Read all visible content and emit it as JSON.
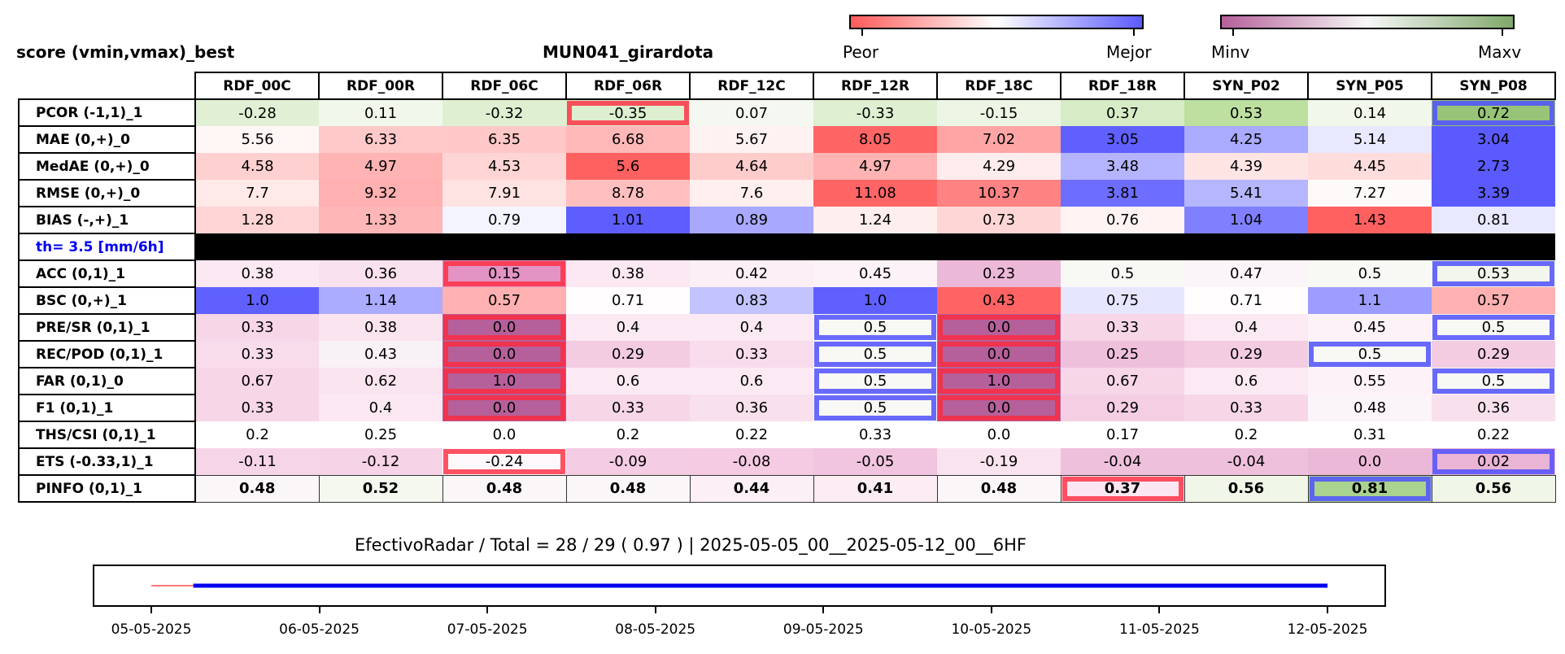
{
  "header": {
    "left_title": "score (vmin,vmax)_best",
    "center_title": "MUN041_girardota"
  },
  "colorbars": [
    {
      "left_label": "Peor",
      "right_label": "Mejor",
      "colors": [
        "#ff5a5a",
        "#ffffff",
        "#5a5aff"
      ]
    },
    {
      "left_label": "Minv",
      "right_label": "Maxv",
      "colors": [
        "#b5609a",
        "#f7f7f7",
        "#7fa86a"
      ]
    }
  ],
  "columns": [
    "RDF_00C",
    "RDF_00R",
    "RDF_06C",
    "RDF_06R",
    "RDF_12C",
    "RDF_12R",
    "RDF_18C",
    "RDF_18R",
    "SYN_P02",
    "SYN_P05",
    "SYN_P08"
  ],
  "threshold_label": "th= 3.5 [mm/6h]",
  "rows": [
    {
      "label": "PCOR (-1,1)_1",
      "values": [
        "-0.28",
        "0.11",
        "-0.32",
        "-0.35",
        "0.07",
        "-0.33",
        "-0.15",
        "0.37",
        "0.53",
        "0.14",
        "0.72"
      ],
      "colors": [
        "#e1f0d4",
        "#f2f7ec",
        "#dff0d2",
        "#ddefcf",
        "#f4f8f0",
        "#dfefd1",
        "#edf5e5",
        "#d6ecc6",
        "#bddf9f",
        "#f1f7eb",
        "#97c478"
      ],
      "worst": [
        3
      ],
      "best": [
        10
      ]
    },
    {
      "label": "MAE (0,+)_0",
      "values": [
        "5.56",
        "6.33",
        "6.35",
        "6.68",
        "5.67",
        "8.05",
        "7.02",
        "3.05",
        "4.25",
        "5.14",
        "3.04"
      ],
      "colors": [
        "#fff6f6",
        "#ffc9c9",
        "#ffc8c8",
        "#ffb8b8",
        "#fff2f2",
        "#ff6565",
        "#ffa5a5",
        "#6060ff",
        "#aaaaff",
        "#e8e8ff",
        "#5a5aff"
      ],
      "worst": [],
      "best": []
    },
    {
      "label": "MedAE (0,+)_0",
      "values": [
        "4.58",
        "4.97",
        "4.53",
        "5.6",
        "4.64",
        "4.97",
        "4.29",
        "3.48",
        "4.39",
        "4.45",
        "2.73"
      ],
      "colors": [
        "#ffd0d0",
        "#ffb3b3",
        "#ffd4d4",
        "#ff6060",
        "#ffcccc",
        "#ffb3b3",
        "#ffeded",
        "#b5b5ff",
        "#ffe4e4",
        "#ffdddd",
        "#5a5aff"
      ],
      "worst": [],
      "best": []
    },
    {
      "label": "RMSE (0,+)_0",
      "values": [
        "7.7",
        "9.32",
        "7.91",
        "8.78",
        "7.6",
        "11.08",
        "10.37",
        "3.81",
        "5.41",
        "7.27",
        "3.39"
      ],
      "colors": [
        "#ffe9e9",
        "#ffb0b0",
        "#ffe2e2",
        "#ffbfbf",
        "#ffefef",
        "#ff6565",
        "#ff8383",
        "#6d6dff",
        "#b6b6ff",
        "#fffafa",
        "#5a5aff"
      ],
      "worst": [],
      "best": []
    },
    {
      "label": "BIAS (-,+)_1",
      "values": [
        "1.28",
        "1.33",
        "0.79",
        "1.01",
        "0.89",
        "1.24",
        "0.73",
        "0.76",
        "1.04",
        "1.43",
        "0.81"
      ],
      "colors": [
        "#ffd4d4",
        "#ffb6b6",
        "#f4f4ff",
        "#5e5eff",
        "#a8a8ff",
        "#ffeeee",
        "#ffd6d6",
        "#fff3f3",
        "#8080ff",
        "#ff6060",
        "#e8e8ff"
      ],
      "worst": [],
      "best": []
    },
    {
      "label": "ACC (0,1)_1",
      "values": [
        "0.38",
        "0.36",
        "0.15",
        "0.38",
        "0.42",
        "0.45",
        "0.23",
        "0.5",
        "0.47",
        "0.5",
        "0.53"
      ],
      "colors": [
        "#fbe8f2",
        "#f9e2ee",
        "#e394c4",
        "#fbe8f2",
        "#fcf0f6",
        "#fcf2f7",
        "#ecb8d8",
        "#f8f9f4",
        "#fbf4f8",
        "#f8f9f4",
        "#f2f6ec"
      ],
      "worst": [
        2
      ],
      "best": [
        10
      ]
    },
    {
      "label": "BSC (0,+)_1",
      "values": [
        "1.0",
        "1.14",
        "0.57",
        "0.71",
        "0.83",
        "1.0",
        "0.43",
        "0.75",
        "0.71",
        "1.1",
        "0.57"
      ],
      "colors": [
        "#6060ff",
        "#ababff",
        "#ffb0b0",
        "#fffdfd",
        "#c3c3ff",
        "#6060ff",
        "#ff6363",
        "#e6e6ff",
        "#fffdfd",
        "#9d9dff",
        "#ffb0b0"
      ],
      "worst": [],
      "best": []
    },
    {
      "label": "PRE/SR (0,1)_1",
      "values": [
        "0.33",
        "0.38",
        "0.0",
        "0.4",
        "0.4",
        "0.5",
        "0.0",
        "0.33",
        "0.4",
        "0.45",
        "0.5"
      ],
      "colors": [
        "#f7d6e8",
        "#fae4ef",
        "#b5609a",
        "#fbeaf3",
        "#fbeaf3",
        "#f8f9f4",
        "#b5609a",
        "#f7d6e8",
        "#fbeaf3",
        "#fcf2f7",
        "#f8f9f4"
      ],
      "worst": [
        2,
        6
      ],
      "best": [
        5,
        10
      ]
    },
    {
      "label": "REC/POD (0,1)_1",
      "values": [
        "0.33",
        "0.43",
        "0.0",
        "0.29",
        "0.33",
        "0.5",
        "0.0",
        "0.25",
        "0.29",
        "0.5",
        "0.29"
      ],
      "colors": [
        "#f8dcec",
        "#f8f1f5",
        "#b5609a",
        "#f3cce2",
        "#f8dcec",
        "#f8f9f4",
        "#b5609a",
        "#efc0dc",
        "#f3cce2",
        "#f8f9f4",
        "#f3cce2"
      ],
      "worst": [
        2,
        6
      ],
      "best": [
        5,
        9
      ]
    },
    {
      "label": "FAR (0,1)_0",
      "values": [
        "0.67",
        "0.62",
        "1.0",
        "0.6",
        "0.6",
        "0.5",
        "1.0",
        "0.67",
        "0.6",
        "0.55",
        "0.5"
      ],
      "colors": [
        "#f7d6e8",
        "#fae4ef",
        "#b5609a",
        "#fbeaf3",
        "#fbeaf3",
        "#f8f9f4",
        "#b5609a",
        "#f7d6e8",
        "#fbeaf3",
        "#fcf2f7",
        "#f8f9f4"
      ],
      "worst": [
        2,
        6
      ],
      "best": [
        5,
        10
      ]
    },
    {
      "label": "F1 (0,1)_1",
      "values": [
        "0.33",
        "0.4",
        "0.0",
        "0.33",
        "0.36",
        "0.5",
        "0.0",
        "0.29",
        "0.33",
        "0.48",
        "0.36"
      ],
      "colors": [
        "#f7d6e8",
        "#fbe8f2",
        "#b5609a",
        "#f7d6e8",
        "#f9e0ed",
        "#f8f9f4",
        "#b5609a",
        "#f4cfe3",
        "#f7d6e8",
        "#fbf4f8",
        "#f9e0ed"
      ],
      "worst": [
        2,
        6
      ],
      "best": [
        5
      ]
    },
    {
      "label": "THS/CSI (0,1)_1",
      "values": [
        "0.2",
        "0.25",
        "0.0",
        "0.2",
        "0.22",
        "0.33",
        "0.0",
        "0.17",
        "0.2",
        "0.31",
        "0.22"
      ],
      "colors": [
        "#ffffff",
        "#ffffff",
        "#ffffff",
        "#ffffff",
        "#ffffff",
        "#ffffff",
        "#ffffff",
        "#ffffff",
        "#ffffff",
        "#ffffff",
        "#ffffff"
      ],
      "worst": [],
      "best": []
    },
    {
      "label": "ETS (-0.33,1)_1",
      "values": [
        "-0.11",
        "-0.12",
        "-0.24",
        "-0.09",
        "-0.08",
        "-0.05",
        "-0.19",
        "-0.04",
        "-0.04",
        "0.0",
        "0.02"
      ],
      "colors": [
        "#f6d5e8",
        "#f6d3e7",
        "#fdf8fb",
        "#f4cce3",
        "#f4cbe2",
        "#f1c5df",
        "#f9e3ef",
        "#efc0dc",
        "#efc0dc",
        "#ecb8d7",
        "#eab4d5"
      ],
      "worst": [
        2
      ],
      "best": [
        10
      ]
    },
    {
      "label": "PINFO (0,1)_1",
      "values": [
        "0.48",
        "0.52",
        "0.48",
        "0.48",
        "0.44",
        "0.41",
        "0.48",
        "0.37",
        "0.56",
        "0.81",
        "0.56"
      ],
      "colors": [
        "#fbf7f9",
        "#f4f8ef",
        "#fbf7f9",
        "#fbf7f9",
        "#fcf0f6",
        "#fcecf4",
        "#fbf7f9",
        "#fbe6f1",
        "#f1f7e8",
        "#a9d38e",
        "#f1f7e8"
      ],
      "worst": [
        7
      ],
      "best": [
        9
      ],
      "bold": true
    }
  ],
  "footer_text": "EfectivoRadar / Total  =  28 / 29 ( 0.97 ) | 2025-05-05_00__2025-05-12_00__6HF",
  "chart_data": {
    "type": "heatmap",
    "title": "MUN041_girardota",
    "columns": [
      "RDF_00C",
      "RDF_00R",
      "RDF_06C",
      "RDF_06R",
      "RDF_12C",
      "RDF_12R",
      "RDF_18C",
      "RDF_18R",
      "SYN_P02",
      "SYN_P05",
      "SYN_P08"
    ],
    "timeline": {
      "x_ticks": [
        "05-05-2025",
        "06-05-2025",
        "07-05-2025",
        "08-05-2025",
        "09-05-2025",
        "10-05-2025",
        "11-05-2025",
        "12-05-2025"
      ],
      "x_start": "2025-05-05 00:00",
      "x_end": "2025-05-12 00:00",
      "series": [
        {
          "color": "#ff4d4d",
          "x_from": "2025-05-05 00:00",
          "x_to": "2025-05-05 06:00"
        },
        {
          "color": "#0000ee",
          "x_from": "2025-05-05 06:00",
          "x_to": "2025-05-12 00:00"
        }
      ]
    }
  }
}
